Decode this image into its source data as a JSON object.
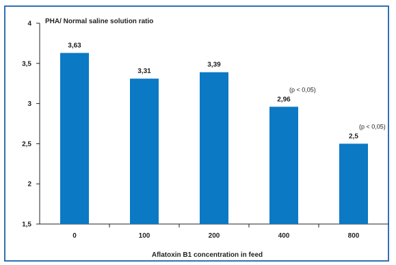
{
  "chart_data": {
    "type": "bar",
    "title": "",
    "ylabel": "PHA/ Normal saline solution ratio",
    "xlabel": "Aflatoxin B1 concentration in feed",
    "categories": [
      "0",
      "100",
      "200",
      "400",
      "800"
    ],
    "values": [
      3.63,
      3.31,
      3.39,
      2.96,
      2.5
    ],
    "value_labels": [
      "3,63",
      "3,31",
      "3,39",
      "2,96",
      "2,5"
    ],
    "annotations": [
      {
        "category_index": 3,
        "text": "(p < 0,05)"
      },
      {
        "category_index": 4,
        "text": "(p < 0,05)"
      }
    ],
    "ylim": [
      1.5,
      4
    ],
    "yticks": [
      1.5,
      2,
      2.5,
      3,
      3.5,
      4
    ],
    "ytick_labels": [
      "1,5",
      "2",
      "2,5",
      "3",
      "3,5",
      "4"
    ],
    "grid": false,
    "legend": "none",
    "bar_color": "#0b79c4",
    "axis_color": "#222222",
    "frame_color": "#2f6fb6"
  }
}
